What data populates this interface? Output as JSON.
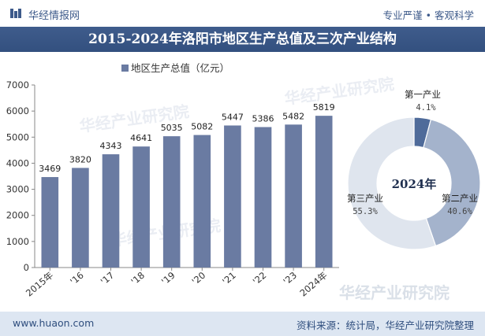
{
  "header": {
    "brand": "华经情报网",
    "slogan_left": "专业严谨",
    "slogan_sep": "•",
    "slogan_right": "客观科学"
  },
  "title": "2015-2024年洛阳市地区生产总值及三次产业结构",
  "footer": {
    "url": "www.huaon.com",
    "source": "资料来源：统计局，华经产业研究院整理"
  },
  "watermarks": {
    "text": "华经产业研究院",
    "url": "www.huaon.com"
  },
  "colors": {
    "bar": "#6a7ba2",
    "primary": "#4f6b9a",
    "secondary": "#a4b3cc",
    "tertiary": "#dfe5ee",
    "brand": "#3d5a8a"
  },
  "chart_data": [
    {
      "type": "bar",
      "legend": "地区生产总值（亿元）",
      "legend_position": "top",
      "categories": [
        "2015年",
        "'16",
        "'17",
        "'18",
        "'19",
        "'20",
        "'21",
        "'22",
        "'23",
        "2024年"
      ],
      "values": [
        3469,
        3820,
        4343,
        4641,
        5035,
        5082,
        5447,
        5386,
        5482,
        5819
      ],
      "ylim": [
        0,
        7000
      ],
      "yticks": [
        0,
        1000,
        2000,
        3000,
        4000,
        5000,
        6000,
        7000
      ],
      "grid": false
    },
    {
      "type": "pie",
      "center_label": "2024年",
      "slices": [
        {
          "name": "第一产业",
          "label": "4.1%",
          "value": 4.1
        },
        {
          "name": "第二产业",
          "label": "40.6%",
          "value": 40.6
        },
        {
          "name": "第三产业",
          "label": "55.3%",
          "value": 55.3
        }
      ]
    }
  ]
}
